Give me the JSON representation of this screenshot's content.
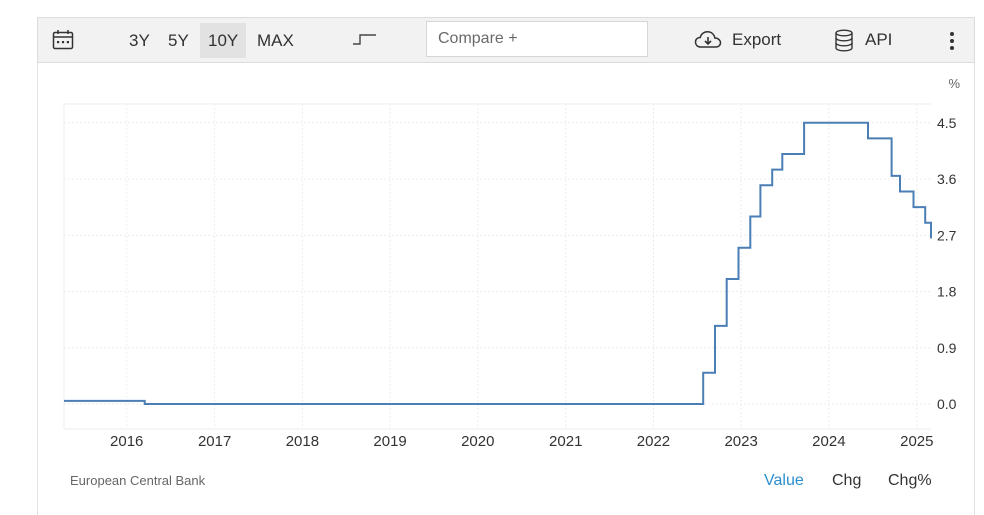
{
  "toolbar": {
    "ranges": [
      "3Y",
      "5Y",
      "10Y",
      "MAX"
    ],
    "active_range": "10Y",
    "compare_placeholder": "Compare +",
    "export_label": "Export",
    "api_label": "API",
    "icons": [
      "calendar-icon",
      "step-chart-icon",
      "cloud-download-icon",
      "database-icon",
      "more-vertical-icon"
    ]
  },
  "footer": {
    "source": "European Central Bank",
    "tabs": [
      "Value",
      "Chg",
      "Chg%"
    ],
    "active_tab": "Value"
  },
  "chart_data": {
    "type": "line",
    "line_style": "step",
    "unit_label": "%",
    "color": "#4a7eb5",
    "ylim": [
      -0.4,
      4.8
    ],
    "yticks": [
      0.0,
      0.9,
      1.8,
      2.7,
      3.6,
      4.5
    ],
    "ytick_labels": [
      "0.0",
      "0.9",
      "1.8",
      "2.7",
      "3.6",
      "4.5"
    ],
    "xlim": [
      "2015-04-15",
      "2025-03-01"
    ],
    "xticks": [
      "2016-01-01",
      "2017-01-01",
      "2018-01-01",
      "2019-01-01",
      "2020-01-01",
      "2021-01-01",
      "2022-01-01",
      "2023-01-01",
      "2024-01-01",
      "2025-01-01"
    ],
    "xtick_labels": [
      "2016",
      "2017",
      "2018",
      "2019",
      "2020",
      "2021",
      "2022",
      "2023",
      "2024",
      "2025"
    ],
    "grid": true,
    "series": [
      {
        "points": [
          [
            "2015-04-15",
            0.05
          ],
          [
            "2016-03-16",
            0.0
          ],
          [
            "2022-07-27",
            0.5
          ],
          [
            "2022-09-14",
            1.25
          ],
          [
            "2022-11-02",
            2.0
          ],
          [
            "2022-12-21",
            2.5
          ],
          [
            "2023-02-08",
            3.0
          ],
          [
            "2023-03-22",
            3.5
          ],
          [
            "2023-05-10",
            3.75
          ],
          [
            "2023-06-21",
            4.0
          ],
          [
            "2023-09-20",
            4.5
          ],
          [
            "2024-06-12",
            4.25
          ],
          [
            "2024-09-18",
            3.65
          ],
          [
            "2024-10-23",
            3.4
          ],
          [
            "2024-12-18",
            3.15
          ],
          [
            "2025-02-05",
            2.9
          ],
          [
            "2025-03-01",
            2.65
          ]
        ]
      }
    ]
  }
}
